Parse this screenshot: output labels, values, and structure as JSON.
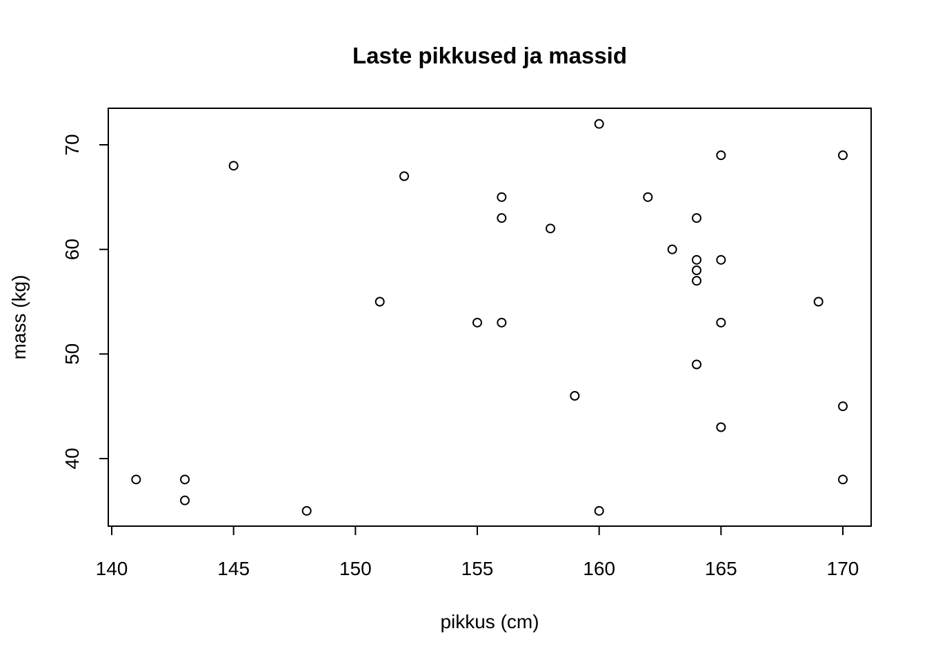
{
  "chart_data": {
    "type": "scatter",
    "title": "Laste pikkused ja massid",
    "xlabel": "pikkus (cm)",
    "ylabel": "mass (kg)",
    "xlim": [
      140,
      171
    ],
    "ylim": [
      34,
      73.5
    ],
    "xticks": [
      140,
      145,
      150,
      155,
      160,
      165,
      170
    ],
    "yticks": [
      40,
      50,
      60,
      70
    ],
    "grid": false,
    "legend": "none",
    "x": [
      141,
      143,
      143,
      145,
      148,
      151,
      152,
      155,
      156,
      156,
      156,
      158,
      159,
      160,
      160,
      162,
      163,
      164,
      164,
      164,
      164,
      164,
      165,
      165,
      165,
      165,
      169,
      170,
      170,
      170
    ],
    "y": [
      38,
      38,
      36,
      68,
      35,
      55,
      67,
      53,
      65,
      63,
      53,
      62,
      46,
      72,
      35,
      65,
      60,
      63,
      59,
      58,
      57,
      49,
      69,
      59,
      53,
      43,
      55,
      69,
      45,
      38
    ]
  }
}
